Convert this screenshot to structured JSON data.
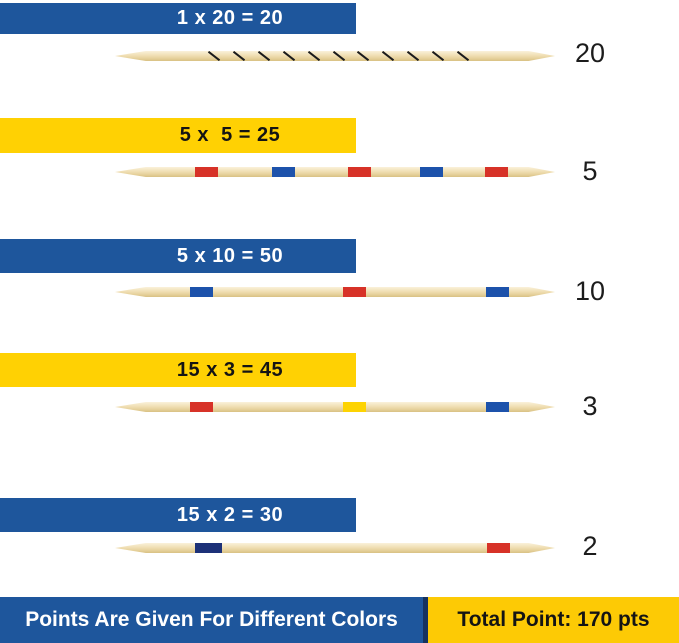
{
  "palette": {
    "banner_blue": "#1e569c",
    "banner_yellow": "#ffd103",
    "footer_yellow": "#fdca05",
    "text_on_blue": "#ffffff",
    "text_on_yellow": "#141414",
    "value_text": "#1c1c1c",
    "wood": "#f1e1b8",
    "stripe_colors": {
      "red": "#d73228",
      "blue": "#1d52ab",
      "navy": "#1d3178",
      "yellow": "#fdd302",
      "black": "#1b1b1b"
    }
  },
  "rows": [
    {
      "formula": "1 x 20 = 20",
      "banner_color": "blue",
      "value": "20",
      "stick": {
        "type": "spiral",
        "marks": 11,
        "mark_color": "black",
        "stripes": []
      }
    },
    {
      "formula": "5 x  5 = 25",
      "banner_color": "yellow",
      "value": "5",
      "stick": {
        "type": "striped",
        "stripes": [
          "red",
          "blue",
          "red",
          "blue",
          "red"
        ]
      }
    },
    {
      "formula": "5 x 10 = 50",
      "banner_color": "blue",
      "value": "10",
      "stick": {
        "type": "striped",
        "stripes": [
          "blue",
          "red",
          "blue"
        ]
      }
    },
    {
      "formula": "15 x 3 = 45",
      "banner_color": "yellow",
      "value": "3",
      "stick": {
        "type": "striped",
        "stripes": [
          "red",
          "yellow",
          "blue"
        ]
      }
    },
    {
      "formula": "15 x 2 = 30",
      "banner_color": "blue",
      "value": "2",
      "stick": {
        "type": "striped",
        "stripes": [
          "navy",
          "red"
        ]
      }
    }
  ],
  "footer": {
    "left_label": "Points Are Given For Different Colors",
    "right_label": "Total Point: 170 pts"
  }
}
